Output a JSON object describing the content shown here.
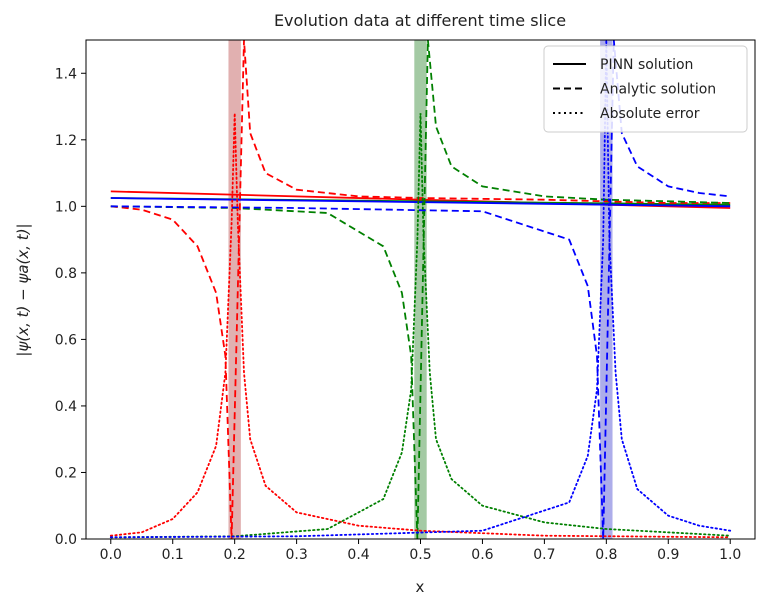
{
  "chart_data": {
    "type": "line",
    "title": "Evolution data at different time slice",
    "xlabel": "x",
    "ylabel": "|ψ(x, t) − ψa(x, t)|",
    "xlim": [
      -0.04,
      1.04
    ],
    "ylim": [
      0,
      1.5
    ],
    "xticks": [
      "0.0",
      "0.1",
      "0.2",
      "0.3",
      "0.4",
      "0.5",
      "0.6",
      "0.7",
      "0.8",
      "0.9",
      "1.0"
    ],
    "yticks": [
      "0.0",
      "0.2",
      "0.4",
      "0.6",
      "0.8",
      "1.0",
      "1.2",
      "1.4"
    ],
    "grid": false,
    "legend": {
      "position": "top-right",
      "entries": [
        {
          "label": "PINN solution",
          "style": "solid"
        },
        {
          "label": "Analytic solution",
          "style": "dashed"
        },
        {
          "label": "Absolute error",
          "style": "dotted"
        }
      ]
    },
    "bands": [
      {
        "x0": 0.19,
        "x1": 0.21,
        "color": "#c87070"
      },
      {
        "x0": 0.49,
        "x1": 0.51,
        "color": "#5a9e5a"
      },
      {
        "x0": 0.79,
        "x1": 0.81,
        "color": "#6a6ad8"
      }
    ],
    "series": [
      {
        "color": "#ff0000",
        "style": "solid",
        "x": [
          0.0,
          1.0
        ],
        "y": [
          1.045,
          0.995
        ]
      },
      {
        "color": "#008000",
        "style": "solid",
        "x": [
          0.0,
          1.0
        ],
        "y": [
          1.025,
          1.005
        ]
      },
      {
        "color": "#0000ff",
        "style": "solid",
        "x": [
          0.0,
          1.0
        ],
        "y": [
          1.025,
          1.0
        ]
      },
      {
        "color": "#ff0000",
        "style": "dashed",
        "x": [
          0.0,
          0.05,
          0.1,
          0.14,
          0.17,
          0.185,
          0.195,
          0.215,
          0.225,
          0.25,
          0.3,
          0.4,
          0.5,
          0.7,
          0.9,
          1.0
        ],
        "y": [
          1.0,
          0.99,
          0.96,
          0.88,
          0.74,
          0.55,
          0.0,
          1.5,
          1.22,
          1.1,
          1.05,
          1.03,
          1.025,
          1.02,
          1.01,
          1.01
        ]
      },
      {
        "color": "#008000",
        "style": "dashed",
        "x": [
          0.0,
          0.2,
          0.35,
          0.44,
          0.47,
          0.485,
          0.495,
          0.512,
          0.525,
          0.55,
          0.6,
          0.7,
          0.8,
          0.9,
          1.0
        ],
        "y": [
          1.0,
          0.995,
          0.98,
          0.88,
          0.74,
          0.55,
          0.0,
          1.5,
          1.24,
          1.12,
          1.06,
          1.03,
          1.02,
          1.015,
          1.01
        ]
      },
      {
        "color": "#0000ff",
        "style": "dashed",
        "x": [
          0.0,
          0.3,
          0.6,
          0.74,
          0.77,
          0.785,
          0.795,
          0.812,
          0.825,
          0.85,
          0.9,
          0.95,
          1.0
        ],
        "y": [
          1.0,
          0.995,
          0.985,
          0.9,
          0.76,
          0.55,
          0.0,
          1.5,
          1.22,
          1.12,
          1.06,
          1.04,
          1.03
        ]
      },
      {
        "color": "#ff0000",
        "style": "dotted",
        "x": [
          0.0,
          0.05,
          0.1,
          0.14,
          0.17,
          0.185,
          0.195,
          0.2,
          0.205,
          0.215,
          0.225,
          0.25,
          0.3,
          0.4,
          0.5,
          0.7,
          1.0
        ],
        "y": [
          0.01,
          0.02,
          0.06,
          0.14,
          0.28,
          0.5,
          0.95,
          1.28,
          0.95,
          0.5,
          0.3,
          0.16,
          0.08,
          0.04,
          0.025,
          0.01,
          0.005
        ]
      },
      {
        "color": "#008000",
        "style": "dotted",
        "x": [
          0.0,
          0.2,
          0.35,
          0.44,
          0.47,
          0.485,
          0.495,
          0.5,
          0.505,
          0.515,
          0.525,
          0.55,
          0.6,
          0.7,
          0.8,
          1.0
        ],
        "y": [
          0.005,
          0.008,
          0.03,
          0.12,
          0.26,
          0.45,
          0.9,
          1.28,
          0.9,
          0.5,
          0.3,
          0.18,
          0.1,
          0.05,
          0.03,
          0.01
        ]
      },
      {
        "color": "#0000ff",
        "style": "dotted",
        "x": [
          0.0,
          0.3,
          0.6,
          0.74,
          0.77,
          0.785,
          0.795,
          0.8,
          0.805,
          0.815,
          0.825,
          0.85,
          0.9,
          0.95,
          1.0
        ],
        "y": [
          0.005,
          0.008,
          0.025,
          0.11,
          0.25,
          0.45,
          0.9,
          1.5,
          0.9,
          0.5,
          0.3,
          0.15,
          0.07,
          0.04,
          0.025
        ]
      }
    ]
  }
}
